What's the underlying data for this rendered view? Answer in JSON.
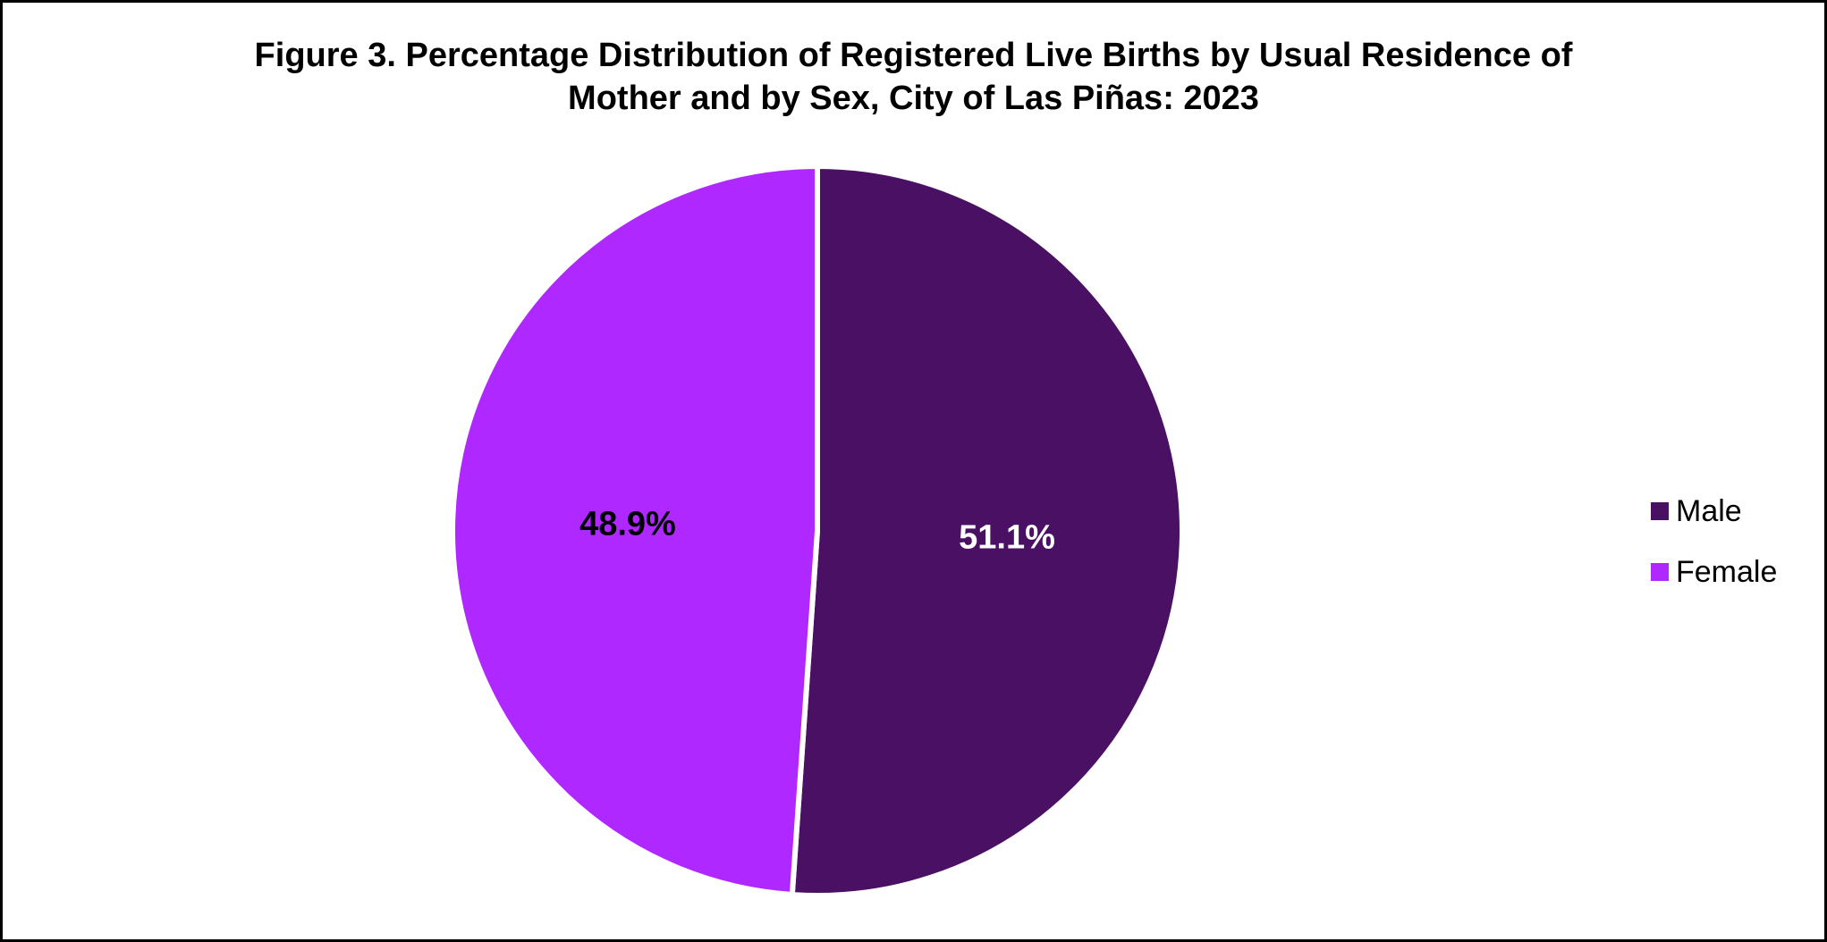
{
  "chart_data": {
    "type": "pie",
    "title_lines": [
      "Figure 3. Percentage Distribution of Registered Live Births by Usual Residence of",
      "Mother and by Sex, City of Las Piñas: 2023"
    ],
    "categories": [
      "Male",
      "Female"
    ],
    "values": [
      51.1,
      48.9
    ],
    "data_labels": [
      "51.1%",
      "48.9%"
    ],
    "colors": [
      "#4A1063",
      "#AF28FF"
    ],
    "label_colors": [
      "#FFFFFF",
      "#000000"
    ],
    "slice_border_color": "#FFFFFF",
    "start_angle": "12 o'clock",
    "direction": "clockwise",
    "legend_position": "right"
  }
}
